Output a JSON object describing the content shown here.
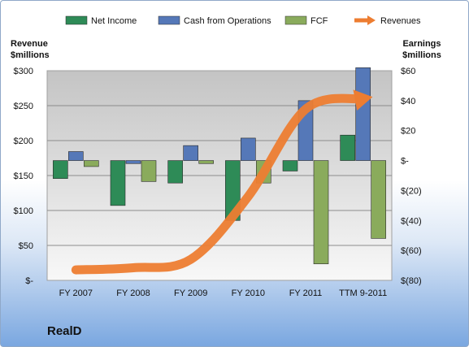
{
  "company": "RealD",
  "chart_data": {
    "type": "bar",
    "categories": [
      "FY 2007",
      "FY 2008",
      "FY 2009",
      "FY 2010",
      "FY 2011",
      "TTM 9-2011"
    ],
    "series": [
      {
        "name": "Net Income",
        "axis": "right",
        "values": [
          -12,
          -30,
          -15,
          -40,
          -7,
          17
        ],
        "color": "#2e8b57"
      },
      {
        "name": "Cash from Operations",
        "axis": "right",
        "values": [
          6,
          -2,
          10,
          15,
          40,
          62
        ],
        "color": "#5578b8"
      },
      {
        "name": "FCF",
        "axis": "right",
        "values": [
          -4,
          -14,
          -2,
          -15,
          -69,
          -52
        ],
        "color": "#8aab5c"
      },
      {
        "name": "Revenues",
        "axis": "left",
        "type": "line",
        "values": [
          15,
          18,
          30,
          120,
          245,
          260
        ],
        "color": "#ed7d31"
      }
    ],
    "left_axis": {
      "title": "Revenue\n$millions",
      "ylim": [
        0,
        300
      ],
      "ticks": [
        0,
        50,
        100,
        150,
        200,
        250,
        300
      ],
      "tick_labels": [
        "$-",
        "$50",
        "$100",
        "$150",
        "$200",
        "$250",
        "$300"
      ]
    },
    "right_axis": {
      "title": "Earnings\n$millions",
      "ylim": [
        -80,
        60
      ],
      "ticks": [
        60,
        40,
        20,
        0,
        -20,
        -40,
        -60,
        -80
      ],
      "tick_labels": [
        "$60",
        "$40",
        "$20",
        "$-",
        "$(20)",
        "$(40)",
        "$(60)",
        "$(80)"
      ]
    },
    "legend_position": "top",
    "grid": true
  }
}
